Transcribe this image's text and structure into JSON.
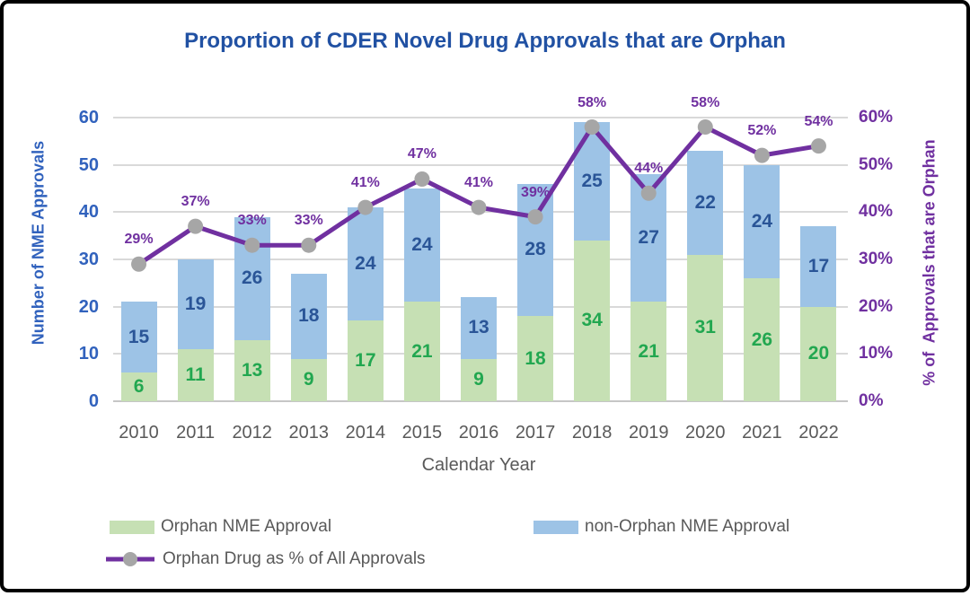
{
  "title": "Proportion of CDER Novel Drug Approvals that are Orphan",
  "chart_data": {
    "type": "combo-stacked-bar-line",
    "title": "Proportion of CDER Novel Drug Approvals that are Orphan",
    "categories": [
      "2010",
      "2011",
      "2012",
      "2013",
      "2014",
      "2015",
      "2016",
      "2017",
      "2018",
      "2019",
      "2020",
      "2021",
      "2022"
    ],
    "series": [
      {
        "name": "Orphan NME Approval",
        "type": "bar",
        "stack": "nme",
        "values": [
          6,
          11,
          13,
          9,
          17,
          21,
          9,
          18,
          34,
          21,
          31,
          26,
          20
        ],
        "color": "#C6E0B4",
        "label_color": "#22A750"
      },
      {
        "name": "non-Orphan NME Approval",
        "type": "bar",
        "stack": "nme",
        "values": [
          15,
          19,
          26,
          18,
          24,
          24,
          13,
          28,
          25,
          27,
          22,
          24,
          17
        ],
        "color": "#9DC3E6",
        "label_color": "#2A5597"
      },
      {
        "name": "Orphan Drug as % of All Approvals",
        "type": "line",
        "axis": "right",
        "values": [
          29,
          37,
          33,
          33,
          41,
          47,
          41,
          39,
          58,
          44,
          58,
          52,
          54
        ],
        "labels": [
          "29%",
          "37%",
          "33%",
          "33%",
          "41%",
          "47%",
          "41%",
          "39%",
          "58%",
          "44%",
          "58%",
          "52%",
          "54%"
        ],
        "line_color": "#7030A0",
        "marker_color": "#A6A6A6",
        "label_color": "#7030A0"
      }
    ],
    "xlabel": "Calendar Year",
    "ylabel_left": "Number of NME Approvals",
    "ylabel_right": "% of  Approvals that are Orphan",
    "yticks_left": [
      "0",
      "10",
      "20",
      "30",
      "40",
      "50",
      "60"
    ],
    "yticks_right": [
      "0%",
      "10%",
      "20%",
      "30%",
      "40%",
      "50%",
      "60%"
    ],
    "ylim_left": [
      0,
      60
    ],
    "ylim_right": [
      0,
      60
    ],
    "grid": "horizontal",
    "legend_position": "bottom-left"
  },
  "colors": {
    "title": "#2151A3",
    "left_axis": "#3162BD",
    "right_axis": "#7030A0",
    "x_axis": "#595959",
    "gridline": "#D9D9D9",
    "legend_text": "#595959",
    "frame_border": "#000000"
  }
}
